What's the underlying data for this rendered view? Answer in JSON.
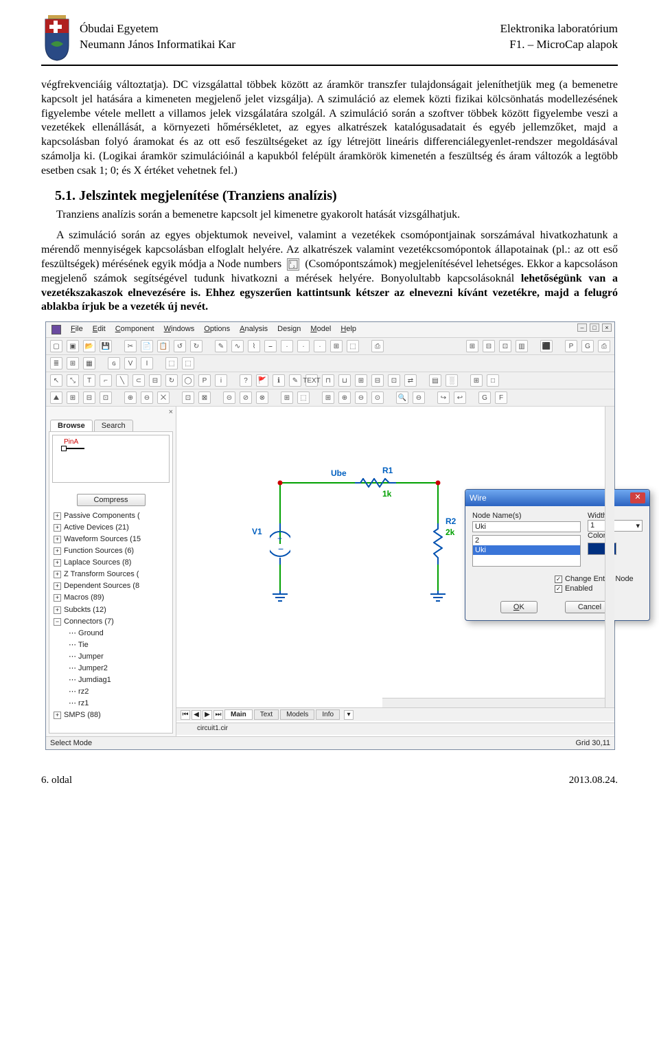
{
  "header": {
    "left_line1": "Óbudai Egyetem",
    "left_line2": "Neumann János Informatikai Kar",
    "right_line1": "Elektronika laboratórium",
    "right_line2": "F1. – MicroCap alapok"
  },
  "text": {
    "p1": "végfrekvenciáig változtatja). DC vizsgálattal többek között az áramkör transzfer tulajdonságait jeleníthetjük meg (a bemenetre kapcsolt jel hatására a kimeneten megjelenő jelet vizsgálja). A szimuláció az elemek közti fizikai kölcsönhatás modellezésének figyelembe vétele mellett a villamos jelek vizsgálatára szolgál. A szimuláció során a szoftver többek között figyelembe veszi a vezetékek ellenállását, a környezeti hőmérsékletet, az egyes alkatrészek katalógusadatait és egyéb jellemzőket, majd a kapcsolásban folyó áramokat és az ott eső feszültségeket az így létrejött lineáris differenciálegyenlet-rendszer megoldásával számolja ki. (Logikai áramkör szimulációinál a kapukból felépült áramkörök kimenetén a feszültség és áram változók a legtöbb esetben csak 1; 0; és X értéket vehetnek fel.)",
    "h2": "5.1. Jelszintek megjelenítése (Tranziens analízis)",
    "p2": "Tranziens analízis során a bemenetre kapcsolt jel kimenetre gyakorolt hatását vizsgálhatjuk.",
    "p3a": "A szimuláció során az egyes objektumok neveivel, valamint a vezetékek csomópontjainak sorszámával hivatkozhatunk a mérendő mennyiségek kapcsolásban elfoglalt helyére. Az alkatrészek valamint vezetékcsomópontok állapotainak (pl.: az ott eső feszültségek) mérésének egyik módja a Node numbers",
    "p3b": "(Csomópontszámok) megjelenítésével lehetséges. Ekkor a kapcsoláson megjelenő számok segítségével tudunk hivatkozni a mérések helyére. Bonyolultabb kapcsolásoknál ",
    "p3c_bold": "lehetőségünk van a vezetékszakaszok elnevezésére is. Ehhez egyszerűen kattintsunk kétszer az elnevezni kívánt vezetékre, majd a felugró ablakba írjuk be a vezeték új nevét.",
    "node_icon_glyph": "1̲2̲"
  },
  "app": {
    "menus": [
      "File",
      "Edit",
      "Component",
      "Windows",
      "Options",
      "Analysis",
      "Design",
      "Model",
      "Help"
    ],
    "panel_tabs": [
      "Browse",
      "Search"
    ],
    "pina_label": "PinA",
    "compress_btn": "Compress",
    "tree": [
      {
        "t": "Passive Components (",
        "tw": "+"
      },
      {
        "t": "Active Devices (21)",
        "tw": "+"
      },
      {
        "t": "Waveform Sources (15",
        "tw": "+"
      },
      {
        "t": "Function Sources (6)",
        "tw": "+"
      },
      {
        "t": "Laplace Sources (8)",
        "tw": "+"
      },
      {
        "t": "Z Transform Sources (",
        "tw": "+"
      },
      {
        "t": "Dependent Sources (8",
        "tw": "+"
      },
      {
        "t": "Macros (89)",
        "tw": "+"
      },
      {
        "t": "Subckts (12)",
        "tw": "+"
      },
      {
        "t": "Connectors (7)",
        "tw": "−",
        "children": [
          "Ground",
          "Tie",
          "Jumper",
          "Jumper2",
          "Jumdiag1",
          "rz2",
          "rz1"
        ]
      },
      {
        "t": "SMPS (88)",
        "tw": "+"
      }
    ],
    "canvas_tabs": [
      "Main",
      "Text",
      "Models",
      "Info"
    ],
    "canvas_file": "circuit1.cir",
    "status_left": "Select Mode",
    "status_right": "Grid 30,11",
    "circuit": {
      "V1_name": "V1",
      "R1_name": "R1",
      "R1_val": "1k",
      "R2_name": "R2",
      "R2_val": "2k",
      "Ube_label": "Ube",
      "colors": {
        "wire": "#00a000",
        "node": "#d02020",
        "comp_blue": "#0050b0"
      }
    },
    "dialog": {
      "title": "Wire",
      "nodename_label": "Node Name(s)",
      "nodename_value": "Uki",
      "list": [
        "2",
        "Uki"
      ],
      "list_selected": 1,
      "width_label": "Width",
      "width_value": "1",
      "color_label": "Color",
      "checks": [
        "Change Entire Node",
        "Enabled"
      ],
      "ok": "OK",
      "cancel": "Cancel"
    },
    "toolbar_glyphs_row1": [
      "▢",
      "▣",
      "📂",
      "💾",
      "",
      "✂",
      "📄",
      "📋",
      "↺",
      "↻",
      "",
      "✎",
      "∿",
      "⌇",
      "⎯",
      "·",
      "·",
      "·",
      "⊞",
      "⬚",
      "",
      "⎙"
    ],
    "toolbar_glyphs_row1_right": [
      "⊞",
      "⊟",
      "⊡",
      "▥",
      "",
      "⬛",
      "",
      "P",
      "G",
      "⎙"
    ],
    "toolbar_glyphs_row2": [
      "≣",
      "⊞",
      "▦",
      "",
      "ɢ",
      "V",
      "I",
      "",
      "⬚",
      "⬚"
    ],
    "tool_strip": [
      "↖",
      "⤡",
      "T",
      "⌐",
      "╲",
      "⊂",
      "⊟",
      "↻",
      "◯",
      "P",
      "i",
      "",
      "?",
      "🚩",
      "ℹ",
      "✎",
      "TEXT",
      "⊓",
      "⊔",
      "⊞",
      "⊟",
      "⊡",
      "⇄",
      "",
      "▤",
      "░",
      "",
      "⊞",
      "□"
    ],
    "tool_strip2": [
      "⛰",
      "⊞",
      "⊟",
      "⊡",
      "",
      "⊕",
      "⊖",
      "⨉",
      "",
      "⊡",
      "⊠",
      "",
      "⊝",
      "⊘",
      "⊗",
      "",
      "⊞",
      "⬚",
      "",
      "⊞",
      "⊕",
      "⊖",
      "⊙",
      "",
      "🔍",
      "⊖",
      "",
      "↪",
      "↩",
      "",
      "G",
      "F"
    ]
  },
  "footer": {
    "page": "6. oldal",
    "date": "2013.08.24."
  }
}
